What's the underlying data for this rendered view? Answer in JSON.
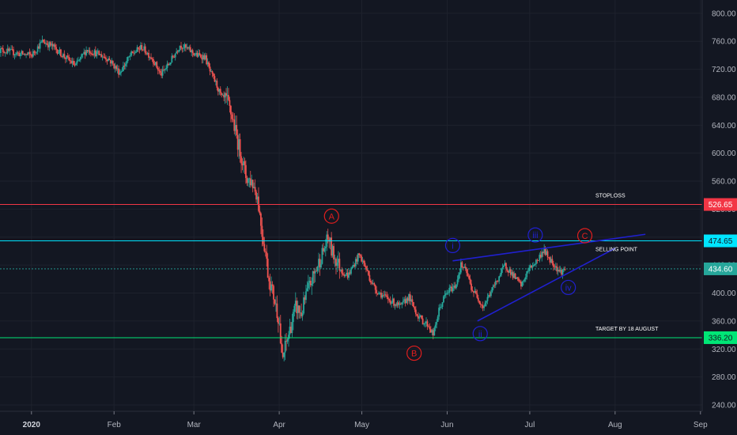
{
  "chart_data": {
    "type": "candlestick",
    "ylim": [
      240,
      810
    ],
    "y_ticks": [
      "800.00",
      "760.00",
      "720.00",
      "680.00",
      "640.00",
      "600.00",
      "560.00",
      "520.00",
      "480.00",
      "440.00",
      "400.00",
      "360.00",
      "320.00",
      "280.00",
      "240.00"
    ],
    "y_tick_values": [
      800,
      760,
      720,
      680,
      640,
      600,
      560,
      520,
      480,
      440,
      400,
      360,
      320,
      280,
      240
    ],
    "x_ticks": [
      {
        "label": "2020",
        "day": 0,
        "bold": true
      },
      {
        "label": "Feb",
        "day": 30
      },
      {
        "label": "Mar",
        "day": 59
      },
      {
        "label": "Apr",
        "day": 90
      },
      {
        "label": "May",
        "day": 120
      },
      {
        "label": "Jun",
        "day": 151
      },
      {
        "label": "Jul",
        "day": 181
      },
      {
        "label": "Aug",
        "day": 212
      },
      {
        "label": "Sep",
        "day": 243
      }
    ],
    "xlim_days": [
      -12,
      258
    ],
    "price_path": [
      [
        -12,
        748
      ],
      [
        -8,
        745
      ],
      [
        -4,
        742
      ],
      [
        0,
        740
      ],
      [
        4,
        760
      ],
      [
        8,
        752
      ],
      [
        12,
        738
      ],
      [
        16,
        725
      ],
      [
        20,
        748
      ],
      [
        24,
        742
      ],
      [
        28,
        735
      ],
      [
        32,
        715
      ],
      [
        36,
        740
      ],
      [
        40,
        752
      ],
      [
        44,
        735
      ],
      [
        47,
        712
      ],
      [
        50,
        728
      ],
      [
        54,
        755
      ],
      [
        57,
        748
      ],
      [
        60,
        740
      ],
      [
        63,
        738
      ],
      [
        65,
        715
      ],
      [
        67,
        700
      ],
      [
        69,
        680
      ],
      [
        71,
        675
      ],
      [
        73,
        650
      ],
      [
        75,
        615
      ],
      [
        76,
        600
      ],
      [
        78,
        565
      ],
      [
        80,
        560
      ],
      [
        82,
        540
      ],
      [
        84,
        480
      ],
      [
        85,
        460
      ],
      [
        86,
        425
      ],
      [
        88,
        395
      ],
      [
        90,
        360
      ],
      [
        91,
        300
      ],
      [
        92,
        320
      ],
      [
        94,
        350
      ],
      [
        96,
        380
      ],
      [
        98,
        370
      ],
      [
        100,
        400
      ],
      [
        102,
        420
      ],
      [
        104,
        440
      ],
      [
        106,
        460
      ],
      [
        108,
        480
      ],
      [
        109,
        460
      ],
      [
        111,
        445
      ],
      [
        113,
        430
      ],
      [
        115,
        425
      ],
      [
        117,
        440
      ],
      [
        119,
        455
      ],
      [
        121,
        440
      ],
      [
        123,
        420
      ],
      [
        125,
        405
      ],
      [
        128,
        395
      ],
      [
        131,
        388
      ],
      [
        134,
        380
      ],
      [
        137,
        395
      ],
      [
        140,
        370
      ],
      [
        142,
        360
      ],
      [
        144,
        355
      ],
      [
        146,
        340
      ],
      [
        148,
        375
      ],
      [
        150,
        395
      ],
      [
        152,
        405
      ],
      [
        154,
        410
      ],
      [
        156,
        440
      ],
      [
        158,
        430
      ],
      [
        160,
        405
      ],
      [
        162,
        395
      ],
      [
        164,
        380
      ],
      [
        166,
        395
      ],
      [
        168,
        410
      ],
      [
        170,
        425
      ],
      [
        172,
        440
      ],
      [
        174,
        430
      ],
      [
        176,
        420
      ],
      [
        178,
        410
      ],
      [
        180,
        430
      ],
      [
        182,
        440
      ],
      [
        184,
        448
      ],
      [
        186,
        462
      ],
      [
        188,
        450
      ],
      [
        190,
        440
      ],
      [
        192,
        430
      ],
      [
        194,
        434
      ]
    ],
    "horizontal_lines": [
      {
        "value": 526.65,
        "label": "526.65",
        "color": "#f23645",
        "annotation": "STOPLOSS"
      },
      {
        "value": 474.65,
        "label": "474.65",
        "color": "#00e5ff",
        "annotation": "SELLING POINT"
      },
      {
        "value": 434.6,
        "label": "434.60",
        "color": "#26a69a",
        "dashed": true
      },
      {
        "value": 336.2,
        "label": "336.20",
        "color": "#00e676",
        "annotation": "TARGET BY 18 AUGUST"
      }
    ],
    "wave_labels": [
      {
        "text": "A",
        "day": 109,
        "value": 510,
        "color": "#e01e1e"
      },
      {
        "text": "B",
        "day": 139,
        "value": 314,
        "color": "#e01e1e"
      },
      {
        "text": "C",
        "day": 201,
        "value": 482,
        "color": "#e01e1e"
      },
      {
        "text": "i",
        "day": 153,
        "value": 468,
        "color": "#2020d0"
      },
      {
        "text": "ii",
        "day": 163,
        "value": 342,
        "color": "#2020d0"
      },
      {
        "text": "iii",
        "day": 183,
        "value": 483,
        "color": "#2020d0"
      },
      {
        "text": "iv",
        "day": 195,
        "value": 408,
        "color": "#2020d0"
      }
    ],
    "trend_lines": [
      {
        "from": [
          153,
          446
        ],
        "to": [
          223,
          484
        ],
        "color": "#2020d0"
      },
      {
        "from": [
          162,
          360
        ],
        "to": [
          212,
          464
        ],
        "color": "#2020d0"
      }
    ]
  }
}
